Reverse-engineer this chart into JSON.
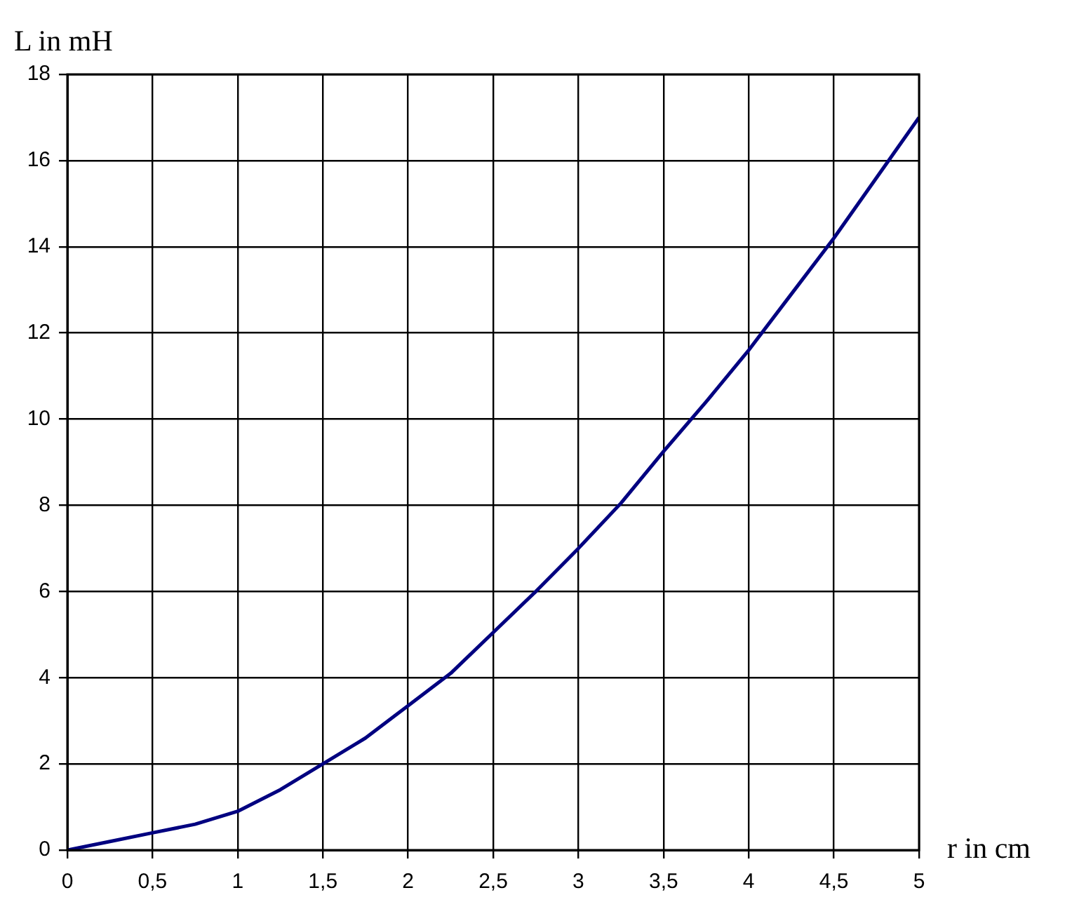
{
  "chart_data": {
    "type": "line",
    "xlabel": "r in cm",
    "ylabel": "L in mH",
    "grid": true,
    "legend": false,
    "marker": "none",
    "x": [
      0,
      0.25,
      0.5,
      0.75,
      1,
      1.25,
      1.5,
      1.75,
      2,
      2.25,
      2.5,
      2.75,
      3,
      3.25,
      3.5,
      3.75,
      4,
      4.25,
      4.5,
      4.75,
      5
    ],
    "series": [
      {
        "color": "#000080",
        "values": [
          0,
          0.2,
          0.4,
          0.6,
          0.9,
          1.4,
          2.0,
          2.6,
          3.35,
          4.1,
          5.05,
          6.0,
          7.0,
          8.05,
          9.25,
          10.4,
          11.6,
          12.9,
          14.2,
          15.6,
          17.0
        ]
      }
    ],
    "xlim": [
      0,
      5
    ],
    "ylim": [
      0,
      18
    ],
    "xticks": [
      0,
      {
        "value": 0.5,
        "label": "0,5"
      },
      1,
      {
        "value": 1.5,
        "label": "1,5"
      },
      2,
      {
        "value": 2.5,
        "label": "2,5"
      },
      3,
      {
        "value": 3.5,
        "label": "3,5"
      },
      4,
      {
        "value": 4.5,
        "label": "4,5"
      },
      5
    ],
    "yticks": [
      0,
      2,
      4,
      6,
      8,
      10,
      12,
      14,
      16,
      18
    ]
  }
}
